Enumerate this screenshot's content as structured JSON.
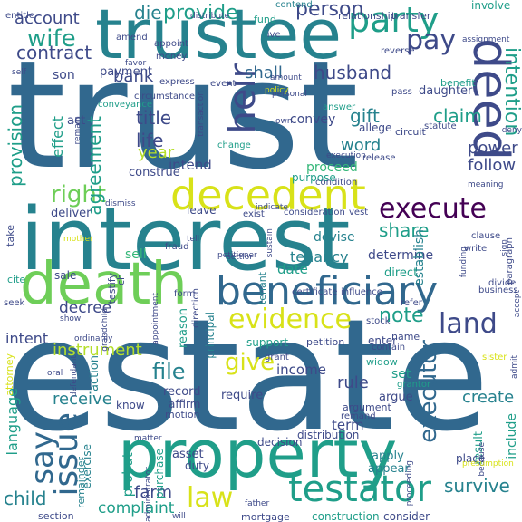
{
  "palette": {
    "dark_purple": "#440154",
    "indigo": "#3e4a89",
    "blue": "#31688e",
    "teal_blue": "#26828e",
    "teal": "#1f9e89",
    "green": "#35b779",
    "light_green": "#6ece58",
    "lime": "#b5de2b",
    "yellow": "#d8e219"
  },
  "words": [
    {
      "text": "trust",
      "color": "blue"
    },
    {
      "text": "estate",
      "color": "blue"
    },
    {
      "text": "interest",
      "color": "teal_blue"
    },
    {
      "text": "trustee",
      "color": "teal_blue"
    },
    {
      "text": "property",
      "color": "teal"
    },
    {
      "text": "death",
      "color": "light_green"
    },
    {
      "text": "beneficiary",
      "color": "blue"
    },
    {
      "text": "decedent",
      "color": "yellow"
    },
    {
      "text": "testator",
      "color": "teal"
    },
    {
      "text": "deed",
      "color": "indigo"
    },
    {
      "text": "party",
      "color": "teal"
    },
    {
      "text": "evidence",
      "color": "yellow"
    },
    {
      "text": "heir",
      "color": "indigo"
    },
    {
      "text": "issue",
      "color": "blue"
    },
    {
      "text": "execute",
      "color": "dark_purple"
    },
    {
      "text": "wife",
      "color": "teal"
    },
    {
      "text": "pay",
      "color": "indigo"
    },
    {
      "text": "law",
      "color": "yellow"
    },
    {
      "text": "land",
      "color": "indigo"
    },
    {
      "text": "say",
      "color": "blue"
    },
    {
      "text": "right",
      "color": "light_green"
    },
    {
      "text": "person",
      "color": "indigo"
    },
    {
      "text": "provide",
      "color": "teal"
    },
    {
      "text": "account",
      "color": "indigo"
    },
    {
      "text": "die",
      "color": "teal_blue"
    },
    {
      "text": "contract",
      "color": "indigo"
    },
    {
      "text": "shall",
      "color": "blue"
    },
    {
      "text": "husband",
      "color": "indigo"
    },
    {
      "text": "bank",
      "color": "indigo"
    },
    {
      "text": "intention",
      "color": "teal"
    },
    {
      "text": "gift",
      "color": "teal_blue"
    },
    {
      "text": "claim",
      "color": "teal"
    },
    {
      "text": "agreement",
      "color": "teal"
    },
    {
      "text": "title",
      "color": "indigo"
    },
    {
      "text": "life",
      "color": "indigo"
    },
    {
      "text": "year",
      "color": "lime"
    },
    {
      "text": "intend",
      "color": "indigo"
    },
    {
      "text": "power",
      "color": "indigo"
    },
    {
      "text": "follow",
      "color": "indigo"
    },
    {
      "text": "word",
      "color": "teal_blue"
    },
    {
      "text": "share",
      "color": "teal"
    },
    {
      "text": "note",
      "color": "teal"
    },
    {
      "text": "instrument",
      "color": "lime"
    },
    {
      "text": "executor",
      "color": "blue"
    },
    {
      "text": "file",
      "color": "teal_blue"
    },
    {
      "text": "give",
      "color": "yellow"
    },
    {
      "text": "rule",
      "color": "indigo"
    },
    {
      "text": "income",
      "color": "indigo"
    },
    {
      "text": "receive",
      "color": "teal_blue"
    },
    {
      "text": "create",
      "color": "teal_blue"
    },
    {
      "text": "child",
      "color": "teal_blue"
    },
    {
      "text": "farm",
      "color": "indigo"
    },
    {
      "text": "survive",
      "color": "teal_blue"
    },
    {
      "text": "complaint",
      "color": "teal"
    },
    {
      "text": "provision",
      "color": "teal"
    },
    {
      "text": "effect",
      "color": "teal"
    },
    {
      "text": "son",
      "color": "indigo"
    },
    {
      "text": "payment",
      "color": "indigo"
    },
    {
      "text": "convey",
      "color": "indigo"
    },
    {
      "text": "tenancy",
      "color": "teal_blue"
    },
    {
      "text": "devise",
      "color": "teal_blue"
    },
    {
      "text": "date",
      "color": "teal"
    },
    {
      "text": "determine",
      "color": "indigo"
    },
    {
      "text": "decree",
      "color": "indigo"
    },
    {
      "text": "sell",
      "color": "green"
    },
    {
      "text": "intent",
      "color": "indigo"
    },
    {
      "text": "establish",
      "color": "teal_blue"
    },
    {
      "text": "language",
      "color": "teal"
    },
    {
      "text": "probate",
      "color": "teal"
    },
    {
      "text": "term",
      "color": "indigo"
    },
    {
      "text": "set",
      "color": "teal"
    },
    {
      "text": "fund",
      "color": "teal"
    },
    {
      "text": "entitle",
      "color": "indigo"
    },
    {
      "text": "relationship",
      "color": "indigo"
    },
    {
      "text": "transfer",
      "color": "indigo"
    },
    {
      "text": "involve",
      "color": "teal"
    },
    {
      "text": "contend",
      "color": "teal_blue"
    },
    {
      "text": "daughter",
      "color": "indigo"
    },
    {
      "text": "benefit",
      "color": "teal"
    },
    {
      "text": "act",
      "color": "indigo"
    },
    {
      "text": "proceed",
      "color": "green"
    },
    {
      "text": "construe",
      "color": "indigo"
    },
    {
      "text": "leave",
      "color": "indigo"
    },
    {
      "text": "deliver",
      "color": "indigo"
    },
    {
      "text": "take",
      "color": "indigo"
    },
    {
      "text": "sale",
      "color": "indigo"
    },
    {
      "text": "cite",
      "color": "teal"
    },
    {
      "text": "seek",
      "color": "indigo"
    },
    {
      "text": "direct",
      "color": "teal"
    },
    {
      "text": "principal",
      "color": "teal_blue"
    },
    {
      "text": "reason",
      "color": "teal"
    },
    {
      "text": "enter",
      "color": "indigo"
    },
    {
      "text": "name",
      "color": "indigo"
    },
    {
      "text": "support",
      "color": "teal"
    },
    {
      "text": "petition",
      "color": "indigo"
    },
    {
      "text": "argue",
      "color": "indigo"
    },
    {
      "text": "action",
      "color": "teal_blue"
    },
    {
      "text": "record",
      "color": "indigo"
    },
    {
      "text": "affirm",
      "color": "indigo"
    },
    {
      "text": "motion",
      "color": "indigo"
    },
    {
      "text": "know",
      "color": "indigo"
    },
    {
      "text": "require",
      "color": "indigo"
    },
    {
      "text": "asset",
      "color": "indigo"
    },
    {
      "text": "decision",
      "color": "indigo"
    },
    {
      "text": "distribution",
      "color": "indigo"
    },
    {
      "text": "purchase",
      "color": "teal"
    },
    {
      "text": "exercise",
      "color": "teal_blue"
    },
    {
      "text": "duty",
      "color": "indigo"
    },
    {
      "text": "apply",
      "color": "teal_blue"
    },
    {
      "text": "appear",
      "color": "teal_blue"
    },
    {
      "text": "result",
      "color": "teal"
    },
    {
      "text": "include",
      "color": "teal"
    },
    {
      "text": "section",
      "color": "indigo"
    },
    {
      "text": "mortgage",
      "color": "indigo"
    },
    {
      "text": "construction",
      "color": "teal"
    },
    {
      "text": "consider",
      "color": "indigo"
    },
    {
      "text": "place",
      "color": "indigo"
    },
    {
      "text": "attorney",
      "color": "yellow"
    },
    {
      "text": "remainder",
      "color": "teal_blue"
    },
    {
      "text": "grant",
      "color": "indigo"
    },
    {
      "text": "widow",
      "color": "teal"
    },
    {
      "text": "argument",
      "color": "indigo"
    },
    {
      "text": "grantor",
      "color": "teal"
    },
    {
      "text": "contain",
      "color": "indigo"
    },
    {
      "text": "certificate",
      "color": "indigo"
    },
    {
      "text": "influence",
      "color": "indigo"
    },
    {
      "text": "business",
      "color": "indigo"
    },
    {
      "text": "circuit",
      "color": "indigo"
    },
    {
      "text": "purpose",
      "color": "teal"
    },
    {
      "text": "release",
      "color": "indigo"
    },
    {
      "text": "allege",
      "color": "indigo"
    },
    {
      "text": "statute",
      "color": "indigo"
    },
    {
      "text": "circumstance",
      "color": "indigo"
    },
    {
      "text": "conveyance",
      "color": "teal"
    },
    {
      "text": "money",
      "color": "indigo"
    },
    {
      "text": "appoint",
      "color": "indigo"
    },
    {
      "text": "express",
      "color": "indigo"
    },
    {
      "text": "amend",
      "color": "indigo"
    },
    {
      "text": "distribute",
      "color": "indigo"
    },
    {
      "text": "favor",
      "color": "indigo"
    },
    {
      "text": "live",
      "color": "indigo"
    },
    {
      "text": "event",
      "color": "indigo"
    },
    {
      "text": "change",
      "color": "teal"
    },
    {
      "text": "answer",
      "color": "teal"
    },
    {
      "text": "pass",
      "color": "indigo"
    },
    {
      "text": "reverse",
      "color": "indigo"
    },
    {
      "text": "condition",
      "color": "indigo"
    },
    {
      "text": "consideration",
      "color": "indigo"
    },
    {
      "text": "exist",
      "color": "indigo"
    },
    {
      "text": "vest",
      "color": "indigo"
    },
    {
      "text": "testify",
      "color": "indigo"
    },
    {
      "text": "fraud",
      "color": "indigo"
    },
    {
      "text": "form",
      "color": "indigo"
    },
    {
      "text": "direction",
      "color": "indigo"
    },
    {
      "text": "tenant",
      "color": "teal_blue"
    },
    {
      "text": "stock",
      "color": "indigo"
    },
    {
      "text": "refer",
      "color": "indigo"
    },
    {
      "text": "sister",
      "color": "yellow"
    },
    {
      "text": "policy",
      "color": "yellow"
    },
    {
      "text": "mother",
      "color": "yellow"
    },
    {
      "text": "matter",
      "color": "indigo"
    },
    {
      "text": "father",
      "color": "indigo"
    },
    {
      "text": "because",
      "color": "indigo"
    },
    {
      "text": "assignment",
      "color": "indigo"
    },
    {
      "text": "clause",
      "color": "indigo"
    },
    {
      "text": "paragraph",
      "color": "indigo"
    },
    {
      "text": "sign",
      "color": "indigo"
    },
    {
      "text": "divide",
      "color": "indigo"
    },
    {
      "text": "write",
      "color": "indigo"
    },
    {
      "text": "funding",
      "color": "indigo"
    },
    {
      "text": "execution",
      "color": "indigo"
    },
    {
      "text": "meaning",
      "color": "indigo"
    },
    {
      "text": "deny",
      "color": "indigo"
    },
    {
      "text": "presumption",
      "color": "yellow"
    },
    {
      "text": "remand",
      "color": "indigo"
    },
    {
      "text": "indicate",
      "color": "indigo"
    },
    {
      "text": "dismiss",
      "color": "indigo"
    },
    {
      "text": "admit",
      "color": "indigo"
    },
    {
      "text": "own",
      "color": "indigo"
    },
    {
      "text": "ch",
      "color": "indigo"
    },
    {
      "text": "remain",
      "color": "indigo"
    },
    {
      "text": "transaction",
      "color": "indigo"
    },
    {
      "text": "grandchild",
      "color": "indigo"
    },
    {
      "text": "appointment",
      "color": "indigo"
    },
    {
      "text": "administrator",
      "color": "indigo"
    },
    {
      "text": "petitioner",
      "color": "indigo"
    },
    {
      "text": "proceeding",
      "color": "indigo"
    },
    {
      "text": "defendant",
      "color": "indigo"
    },
    {
      "text": "accept",
      "color": "indigo"
    },
    {
      "text": "show",
      "color": "indigo"
    },
    {
      "text": "tell",
      "color": "indigo"
    },
    {
      "text": "will",
      "color": "indigo"
    },
    {
      "text": "ordinarily",
      "color": "indigo"
    },
    {
      "text": "sustain",
      "color": "indigo"
    },
    {
      "text": "settlor",
      "color": "indigo"
    },
    {
      "text": "oral",
      "color": "indigo"
    },
    {
      "text": "self",
      "color": "indigo"
    },
    {
      "text": "amount",
      "color": "indigo"
    },
    {
      "text": "personal",
      "color": "indigo"
    }
  ]
}
